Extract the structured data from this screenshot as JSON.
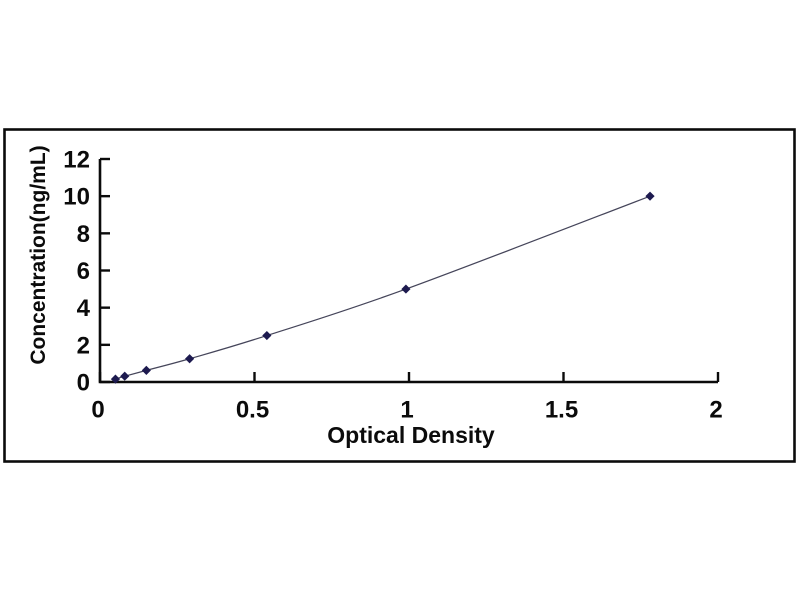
{
  "chart_data": {
    "type": "line",
    "title": "",
    "xlabel": "Optical Density",
    "ylabel": "Concentration(ng/mL)",
    "x": [
      0.05,
      0.08,
      0.15,
      0.29,
      0.54,
      0.99,
      1.78
    ],
    "y": [
      0.156,
      0.312,
      0.625,
      1.25,
      2.5,
      5.0,
      10.0
    ],
    "xlim": [
      0,
      2
    ],
    "ylim": [
      0,
      12
    ],
    "xticks": [
      0,
      0.5,
      1,
      1.5,
      2
    ],
    "xtick_labels": [
      "0",
      "0.5",
      "1",
      "1.5",
      "2"
    ],
    "yticks": [
      0,
      2,
      4,
      6,
      8,
      10,
      12
    ],
    "ytick_labels": [
      "0",
      "2",
      "4",
      "6",
      "8",
      "10",
      "12"
    ],
    "grid": false,
    "legend": "none",
    "marker": "diamond",
    "colors": {
      "marker": "#1d1a4f",
      "line": "#45455a",
      "axis": "#0b0b0b",
      "frame": "#0b0b0b",
      "text": "#0b0b0b",
      "background": "#ffffff"
    }
  }
}
